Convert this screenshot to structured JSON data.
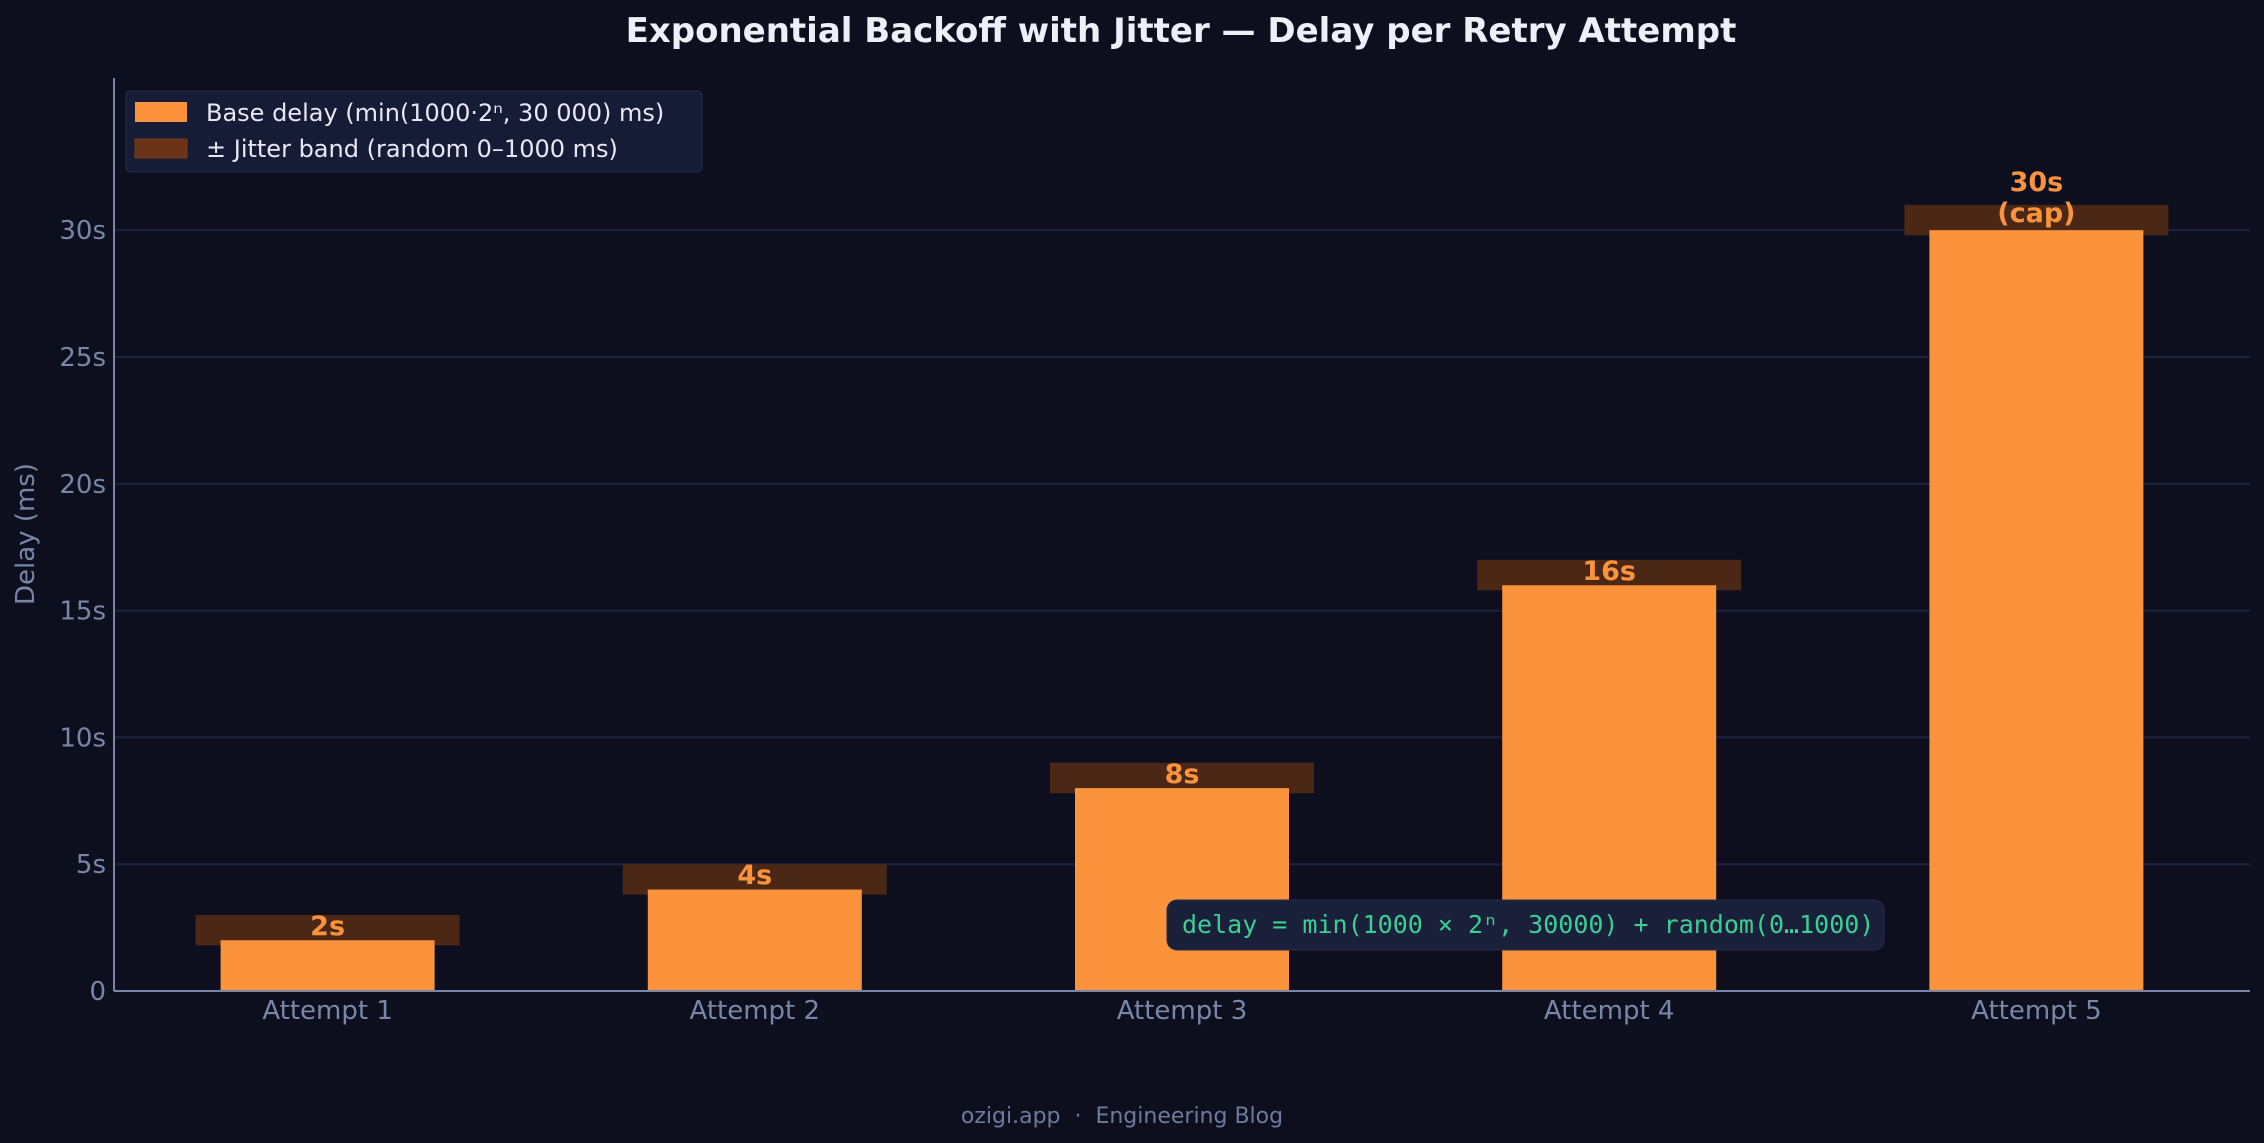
{
  "chart_data": {
    "type": "bar",
    "title": "Exponential Backoff with Jitter — Delay per Retry Attempt",
    "xlabel": "",
    "ylabel": "Delay (ms)",
    "categories": [
      "Attempt 1",
      "Attempt 2",
      "Attempt 3",
      "Attempt 4",
      "Attempt 5"
    ],
    "series": [
      {
        "name": "Base delay  (min(1000·2ⁿ, 30 000) ms)",
        "values": [
          2000,
          4000,
          8000,
          16000,
          30000
        ],
        "color": "#fb923c"
      },
      {
        "name": "± Jitter band  (random 0–1000 ms)",
        "jitter_ms": [
          0,
          1000
        ],
        "color": "#6b3418"
      }
    ],
    "data_labels": [
      "2s",
      "4s",
      "8s",
      "16s",
      "30s\n(cap)"
    ],
    "ylim": [
      0,
      36000
    ],
    "yticks": [
      0,
      5000,
      10000,
      15000,
      20000,
      25000,
      30000
    ],
    "ytick_labels": [
      "0",
      "5s",
      "10s",
      "15s",
      "20s",
      "25s",
      "30s"
    ],
    "grid": true,
    "legend": "top-left",
    "annotation": "delay = min(1000 × 2ⁿ, 30000) + random(0…1000)"
  },
  "footer": "ozigi.app  ·  Engineering Blog",
  "colors": {
    "background": "#0d0f1e",
    "bar": "#fb923c",
    "jitter": "#4a2815",
    "grid": "#1e2140",
    "axis_text": "#7a86a8",
    "annotation_text": "#3ccf94"
  }
}
